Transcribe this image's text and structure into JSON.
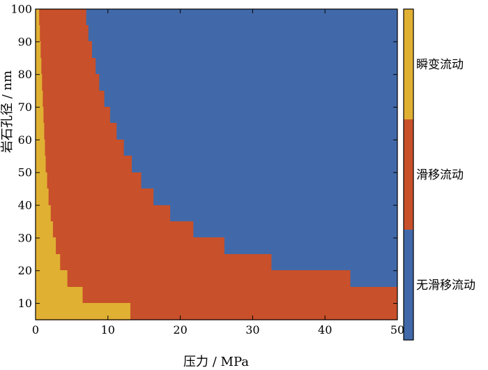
{
  "chart_data": {
    "type": "heatmap",
    "xlabel": "压力 / MPa",
    "ylabel": "岩石孔径 / nm",
    "xlim": [
      0,
      50
    ],
    "ylim": [
      5,
      100
    ],
    "x_ticks": [
      0,
      10,
      20,
      30,
      40,
      50
    ],
    "y_ticks": [
      10,
      20,
      30,
      40,
      50,
      60,
      70,
      80,
      90,
      100
    ],
    "categories": [
      "瞬变流动",
      "滑移流动",
      "无滑移流动"
    ],
    "colors": {
      "瞬变流动": "#e0b033",
      "滑移流动": "#c8502a",
      "无滑移流动": "#4169a9"
    },
    "legend_position": "right colorbar",
    "bands": [
      {
        "y_range": [
          95,
          100
        ],
        "transitional_max_pressure": 0.5,
        "slip_max_pressure": 7.0
      },
      {
        "y_range": [
          90,
          95
        ],
        "transitional_max_pressure": 0.6,
        "slip_max_pressure": 7.3
      },
      {
        "y_range": [
          85,
          90
        ],
        "transitional_max_pressure": 0.7,
        "slip_max_pressure": 7.8
      },
      {
        "y_range": [
          80,
          85
        ],
        "transitional_max_pressure": 0.8,
        "slip_max_pressure": 8.3
      },
      {
        "y_range": [
          75,
          80
        ],
        "transitional_max_pressure": 0.9,
        "slip_max_pressure": 8.8
      },
      {
        "y_range": [
          70,
          75
        ],
        "transitional_max_pressure": 1.0,
        "slip_max_pressure": 9.5
      },
      {
        "y_range": [
          65,
          70
        ],
        "transitional_max_pressure": 1.1,
        "slip_max_pressure": 10.3
      },
      {
        "y_range": [
          60,
          65
        ],
        "transitional_max_pressure": 1.2,
        "slip_max_pressure": 11.2
      },
      {
        "y_range": [
          55,
          60
        ],
        "transitional_max_pressure": 1.3,
        "slip_max_pressure": 12.2
      },
      {
        "y_range": [
          50,
          55
        ],
        "transitional_max_pressure": 1.4,
        "slip_max_pressure": 13.3
      },
      {
        "y_range": [
          45,
          50
        ],
        "transitional_max_pressure": 1.6,
        "slip_max_pressure": 14.6
      },
      {
        "y_range": [
          40,
          45
        ],
        "transitional_max_pressure": 1.8,
        "slip_max_pressure": 16.3
      },
      {
        "y_range": [
          35,
          40
        ],
        "transitional_max_pressure": 2.1,
        "slip_max_pressure": 18.6
      },
      {
        "y_range": [
          30,
          35
        ],
        "transitional_max_pressure": 2.4,
        "slip_max_pressure": 21.8
      },
      {
        "y_range": [
          25,
          30
        ],
        "transitional_max_pressure": 2.8,
        "slip_max_pressure": 26.1
      },
      {
        "y_range": [
          20,
          25
        ],
        "transitional_max_pressure": 3.4,
        "slip_max_pressure": 32.6
      },
      {
        "y_range": [
          15,
          20
        ],
        "transitional_max_pressure": 4.4,
        "slip_max_pressure": 43.5
      },
      {
        "y_range": [
          10,
          15
        ],
        "transitional_max_pressure": 6.5,
        "slip_max_pressure": 50.0
      },
      {
        "y_range": [
          5,
          10
        ],
        "transitional_max_pressure": 13.1,
        "slip_max_pressure": 50.0
      }
    ]
  }
}
